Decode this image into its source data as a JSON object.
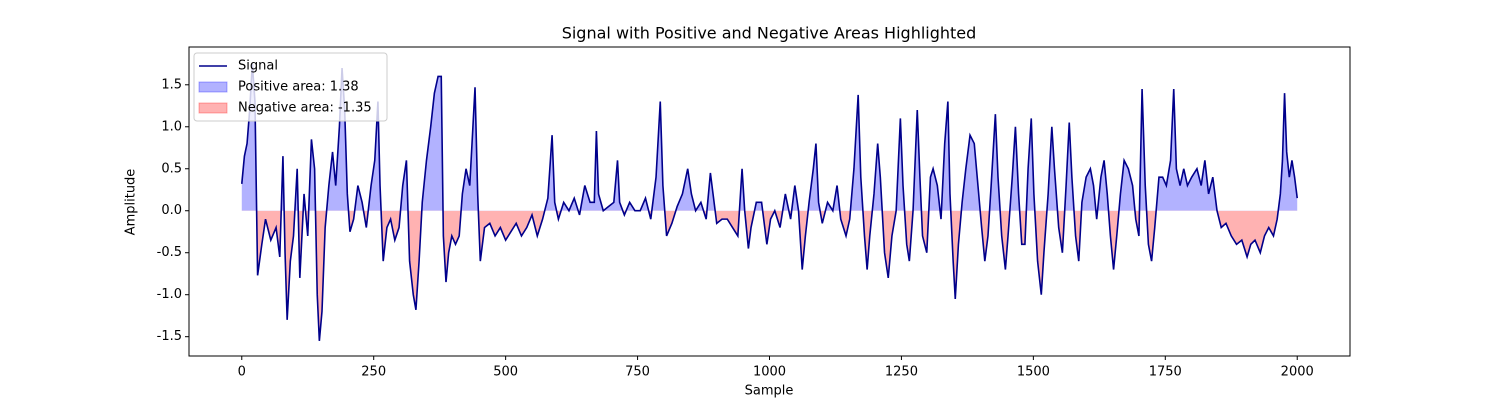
{
  "chart_data": {
    "type": "line",
    "title": "Signal with Positive and Negative Areas Highlighted",
    "x_label": "Sample",
    "y_label": "Amplitude",
    "x": [
      0,
      5,
      10,
      15,
      20,
      25,
      30,
      38,
      45,
      55,
      65,
      72,
      78,
      82,
      86,
      92,
      98,
      105,
      110,
      118,
      125,
      132,
      138,
      143,
      147,
      152,
      158,
      165,
      172,
      178,
      185,
      190,
      195,
      200,
      205,
      212,
      220,
      228,
      236,
      245,
      252,
      258,
      262,
      268,
      275,
      282,
      290,
      298,
      305,
      312,
      318,
      325,
      330,
      336,
      342,
      350,
      358,
      365,
      372,
      378,
      382,
      387,
      392,
      398,
      405,
      412,
      418,
      425,
      432,
      438,
      442,
      447,
      452,
      460,
      470,
      480,
      490,
      500,
      510,
      520,
      530,
      540,
      550,
      560,
      570,
      580,
      588,
      593,
      600,
      610,
      620,
      630,
      640,
      650,
      660,
      668,
      672,
      676,
      685,
      695,
      705,
      712,
      716,
      725,
      735,
      745,
      755,
      765,
      775,
      785,
      793,
      798,
      805,
      815,
      825,
      835,
      845,
      852,
      860,
      870,
      880,
      888,
      893,
      900,
      910,
      920,
      930,
      940,
      948,
      953,
      960,
      965,
      975,
      985,
      995,
      1002,
      1010,
      1020,
      1030,
      1040,
      1048,
      1055,
      1062,
      1068,
      1075,
      1083,
      1088,
      1093,
      1100,
      1110,
      1120,
      1128,
      1135,
      1145,
      1152,
      1160,
      1168,
      1173,
      1180,
      1185,
      1190,
      1198,
      1205,
      1210,
      1218,
      1225,
      1232,
      1240,
      1248,
      1253,
      1260,
      1265,
      1272,
      1280,
      1285,
      1290,
      1298,
      1305,
      1310,
      1318,
      1325,
      1332,
      1338,
      1342,
      1348,
      1352,
      1358,
      1365,
      1372,
      1380,
      1388,
      1395,
      1402,
      1408,
      1414,
      1420,
      1428,
      1433,
      1440,
      1447,
      1452,
      1460,
      1466,
      1472,
      1478,
      1484,
      1490,
      1496,
      1501,
      1508,
      1515,
      1520,
      1528,
      1535,
      1540,
      1548,
      1555,
      1562,
      1568,
      1573,
      1580,
      1586,
      1592,
      1600,
      1608,
      1614,
      1620,
      1628,
      1634,
      1640,
      1646,
      1652,
      1658,
      1665,
      1672,
      1680,
      1688,
      1694,
      1700,
      1706,
      1712,
      1718,
      1724,
      1730,
      1738,
      1745,
      1752,
      1760,
      1766,
      1771,
      1778,
      1785,
      1792,
      1800,
      1810,
      1818,
      1825,
      1832,
      1840,
      1848,
      1856,
      1865,
      1875,
      1885,
      1895,
      1905,
      1912,
      1920,
      1930,
      1938,
      1946,
      1955,
      1962,
      1968,
      1972,
      1976,
      1980,
      1985,
      1990,
      1995,
      2000
    ],
    "series": [
      {
        "name": "Signal",
        "color": "#00008b",
        "values": [
          0.32,
          0.65,
          0.8,
          1.2,
          1.75,
          1.3,
          -0.77,
          -0.4,
          -0.1,
          -0.35,
          -0.2,
          -0.55,
          0.65,
          -0.5,
          -1.3,
          -0.6,
          -0.3,
          0.5,
          -0.8,
          0.2,
          -0.3,
          0.85,
          0.5,
          -1.0,
          -1.55,
          -1.2,
          -0.2,
          0.3,
          0.7,
          0.3,
          1.0,
          1.7,
          1.2,
          0.2,
          -0.25,
          -0.1,
          0.3,
          0.1,
          -0.2,
          0.3,
          0.6,
          1.3,
          0.3,
          -0.6,
          -0.2,
          -0.1,
          -0.35,
          -0.2,
          0.3,
          0.6,
          -0.6,
          -1.0,
          -1.18,
          -0.6,
          0.1,
          0.6,
          1.0,
          1.4,
          1.6,
          1.6,
          -0.3,
          -0.85,
          -0.5,
          -0.3,
          -0.4,
          -0.3,
          0.2,
          0.5,
          0.3,
          1.0,
          1.47,
          0.2,
          -0.6,
          -0.2,
          -0.15,
          -0.3,
          -0.2,
          -0.35,
          -0.25,
          -0.15,
          -0.3,
          -0.2,
          -0.05,
          -0.3,
          -0.1,
          0.15,
          0.9,
          0.1,
          -0.1,
          0.1,
          0.0,
          0.15,
          -0.05,
          0.3,
          0.1,
          0.1,
          0.95,
          0.2,
          0.0,
          0.05,
          0.1,
          0.6,
          0.1,
          -0.05,
          0.1,
          0.0,
          0.0,
          0.15,
          -0.1,
          0.4,
          1.3,
          0.3,
          -0.3,
          -0.15,
          0.05,
          0.2,
          0.5,
          0.2,
          0.0,
          0.1,
          -0.1,
          0.45,
          0.2,
          -0.15,
          -0.1,
          -0.1,
          -0.2,
          -0.3,
          0.5,
          0.0,
          -0.45,
          -0.2,
          0.1,
          0.1,
          -0.4,
          -0.1,
          0.0,
          -0.2,
          0.2,
          -0.1,
          0.3,
          0.0,
          -0.7,
          -0.3,
          0.1,
          0.5,
          0.8,
          0.1,
          -0.15,
          0.1,
          0.0,
          0.3,
          -0.1,
          -0.3,
          -0.1,
          0.5,
          1.38,
          0.4,
          -0.3,
          -0.7,
          -0.3,
          0.2,
          0.8,
          0.4,
          -0.5,
          -0.8,
          -0.3,
          0.0,
          1.1,
          0.3,
          -0.4,
          -0.6,
          0.0,
          1.2,
          0.4,
          -0.3,
          -0.5,
          0.4,
          0.5,
          0.3,
          -0.1,
          0.8,
          1.3,
          0.2,
          -0.6,
          -1.05,
          -0.4,
          0.1,
          0.5,
          0.9,
          0.8,
          0.3,
          -0.2,
          -0.6,
          -0.3,
          0.3,
          1.15,
          0.4,
          -0.3,
          -0.7,
          -0.3,
          0.4,
          1.0,
          0.2,
          -0.4,
          -0.4,
          0.5,
          1.1,
          0.2,
          -0.6,
          -1.0,
          -0.5,
          0.2,
          1.0,
          0.5,
          -0.2,
          -0.5,
          0.3,
          1.05,
          0.4,
          -0.3,
          -0.6,
          0.1,
          0.4,
          0.5,
          0.3,
          -0.1,
          0.4,
          0.6,
          0.2,
          -0.3,
          -0.7,
          -0.3,
          0.2,
          0.6,
          0.5,
          0.3,
          -0.1,
          -0.3,
          1.45,
          0.3,
          -0.4,
          -0.6,
          -0.2,
          0.4,
          0.4,
          0.3,
          0.6,
          1.45,
          0.5,
          0.3,
          0.5,
          0.3,
          0.4,
          0.5,
          0.3,
          0.6,
          0.2,
          0.4,
          0.0,
          -0.2,
          -0.15,
          -0.3,
          -0.4,
          -0.35,
          -0.55,
          -0.4,
          -0.35,
          -0.5,
          -0.3,
          -0.2,
          -0.3,
          -0.1,
          0.2,
          0.6,
          1.4,
          0.7,
          0.4,
          0.6,
          0.4,
          0.15
        ]
      }
    ],
    "fills": [
      {
        "name": "Positive area: 1.38",
        "color": "#0000ff",
        "side": "positive"
      },
      {
        "name": "Negative area: -1.35",
        "color": "#ff0000",
        "side": "negative"
      }
    ],
    "xlim": [
      -100,
      2100
    ],
    "ylim": [
      -1.73,
      1.95
    ],
    "xticks": [
      0,
      250,
      500,
      750,
      1000,
      1250,
      1500,
      1750,
      2000
    ],
    "yticks": [
      -1.5,
      {
        "value": -1,
        "label": "-1.0"
      },
      -0.5,
      {
        "value": 0,
        "label": "0.0"
      },
      0.5,
      {
        "value": 1,
        "label": "1.0"
      },
      1.5
    ],
    "legend": "upper left"
  }
}
